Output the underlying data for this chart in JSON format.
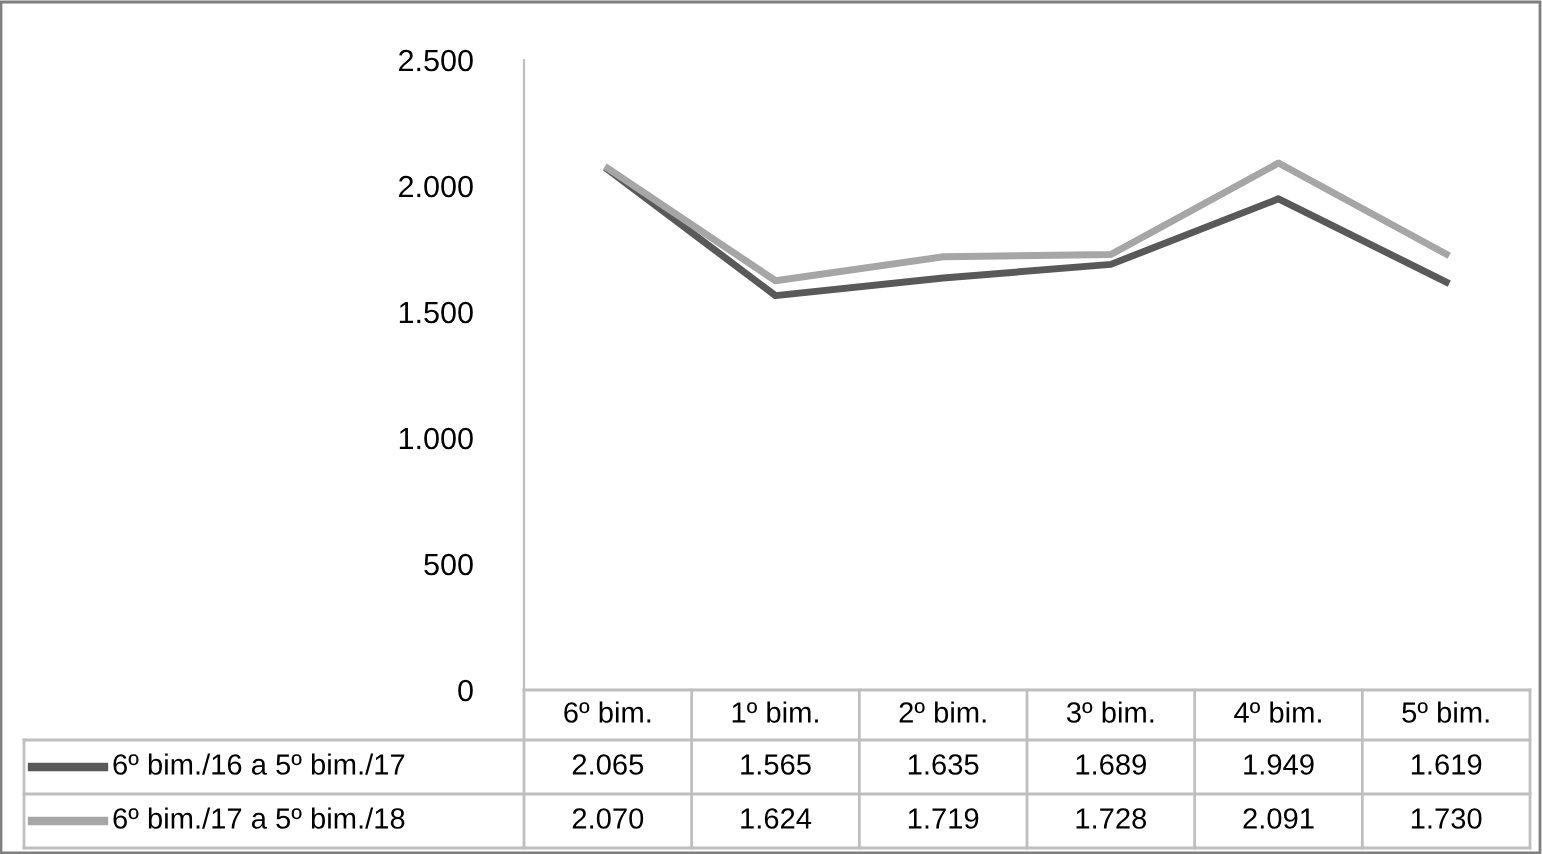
{
  "chart_data": {
    "type": "line",
    "categories": [
      "6º bim.",
      "1º bim.",
      "2º bim.",
      "3º bim.",
      "4º bim.",
      "5º bim."
    ],
    "ylim": [
      0,
      2500
    ],
    "yticks": [
      0,
      500,
      {
        "value": 1000,
        "label": "1.000"
      },
      {
        "value": 1500,
        "label": "1.500"
      },
      {
        "value": 2000,
        "label": "2.000"
      },
      {
        "value": 2500,
        "label": "2.500"
      }
    ],
    "grid": false,
    "legend": "bottom",
    "marker": "none",
    "line_style": "solid",
    "series": [
      {
        "name": "6º bim./16 a 5º bim./17",
        "color": "#595959",
        "values": [
          2065,
          1565,
          1635,
          1689,
          1949,
          1619
        ],
        "value_labels": [
          "2.065",
          "1.565",
          "1.635",
          "1.689",
          "1.949",
          "1.619"
        ]
      },
      {
        "name": "6º bim./17 a 5º bim./18",
        "color": "#a6a6a6",
        "values": [
          2070,
          1624,
          1719,
          1728,
          2091,
          1730
        ],
        "value_labels": [
          "2.070",
          "1.624",
          "1.719",
          "1.728",
          "2.091",
          "1.730"
        ]
      }
    ]
  }
}
